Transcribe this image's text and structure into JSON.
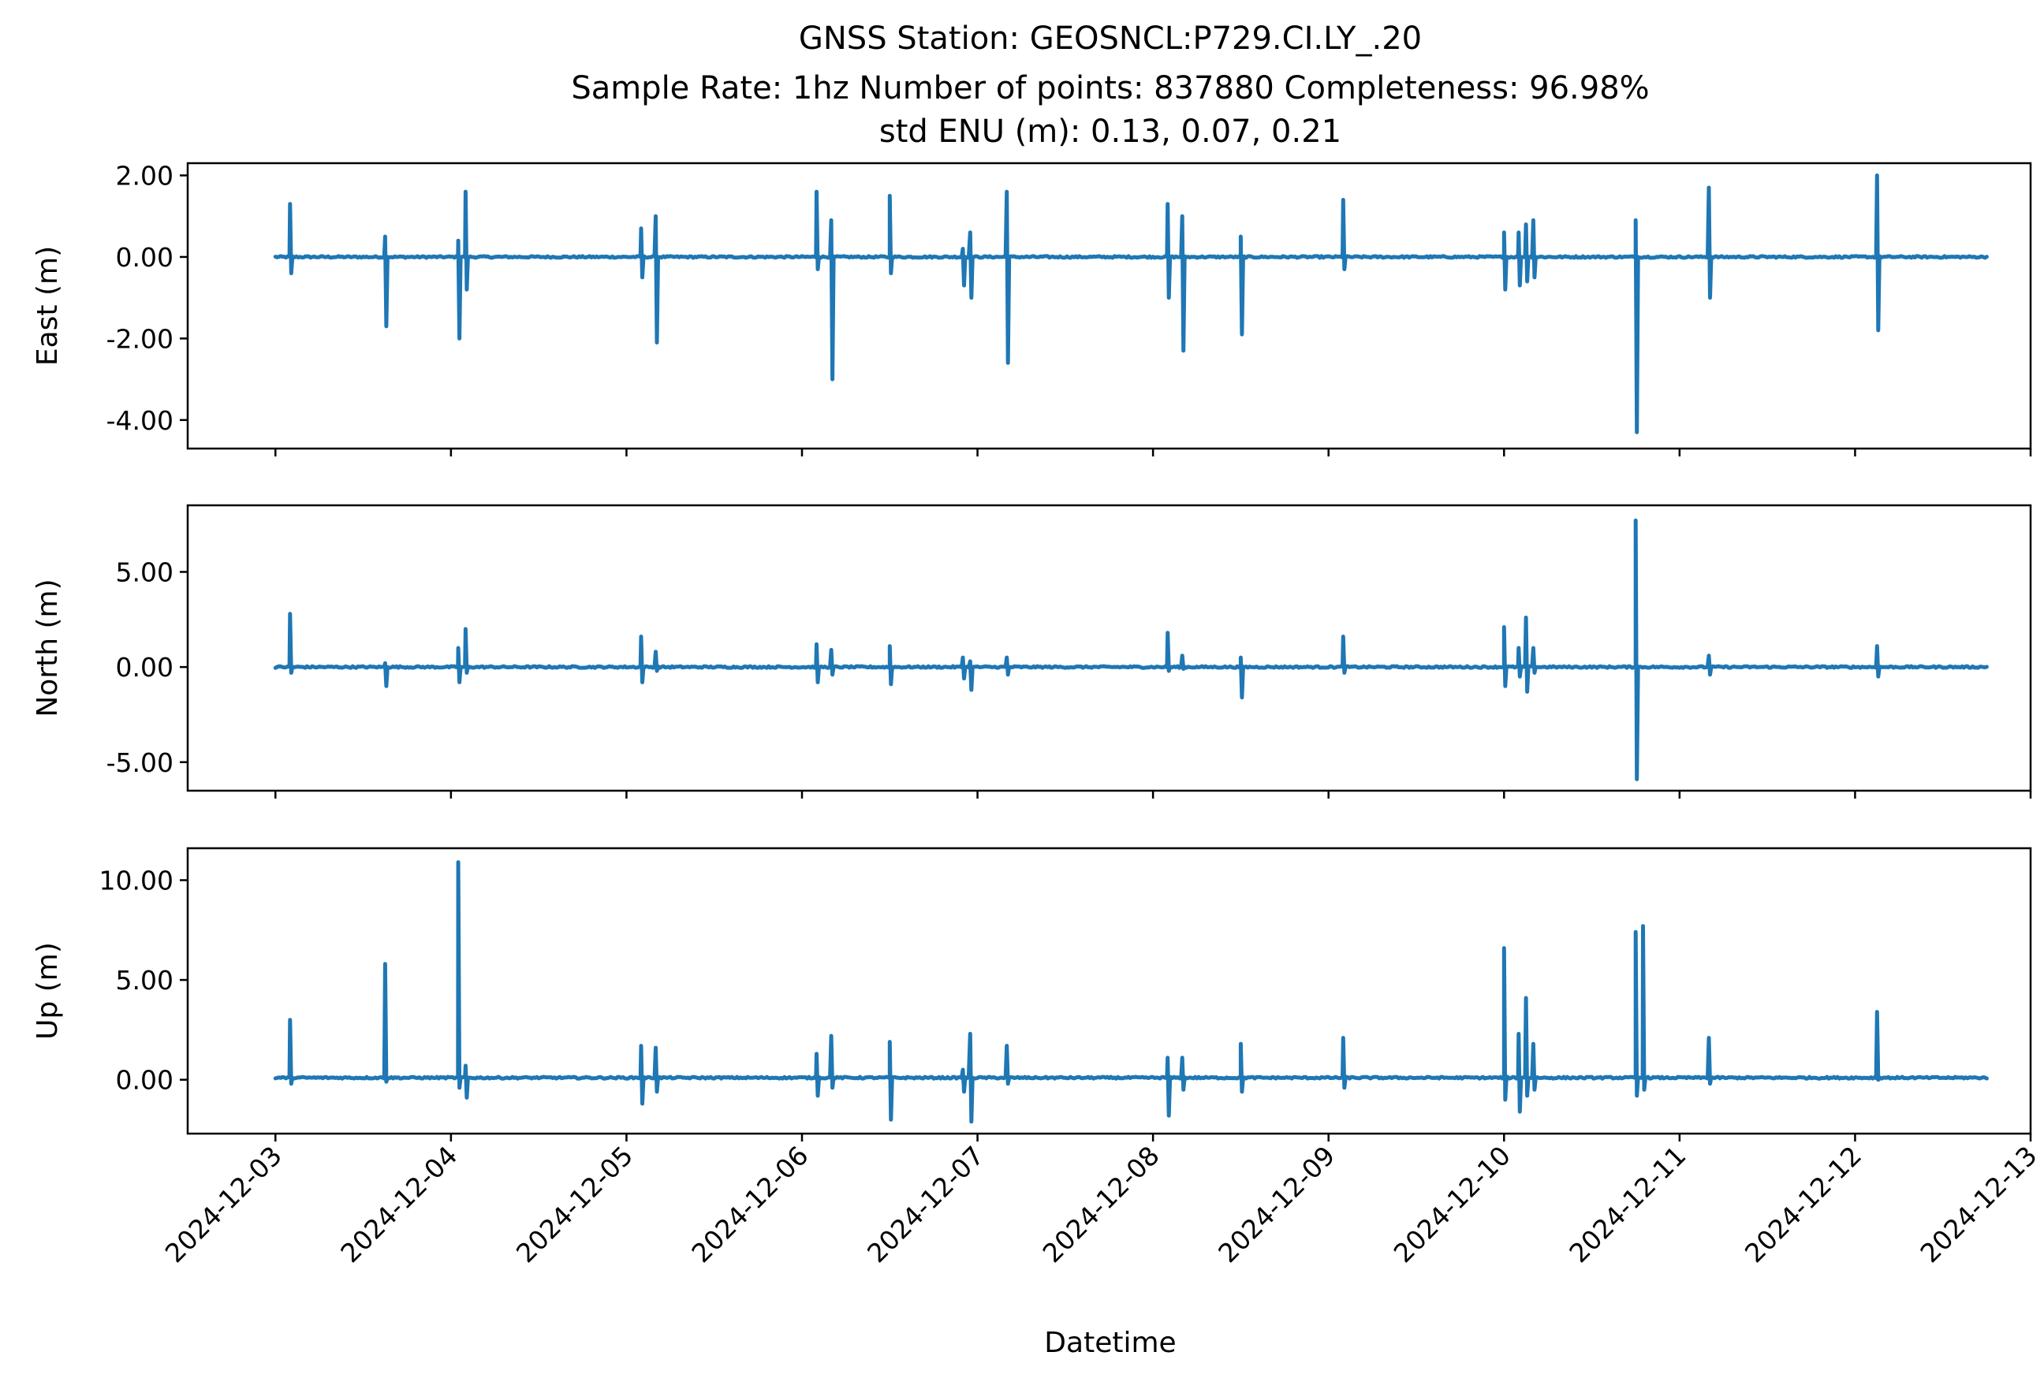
{
  "chart_data": {
    "type": "line",
    "title": "GNSS Station: GEOSNCL:P729.CI.LY_.20",
    "subtitle": "Sample Rate: 1hz   Number of points: 837880    Completeness:  96.98%",
    "subtitle2": "std ENU (m):  0.13, 0.07, 0.21",
    "xlabel": "Datetime",
    "x_ticks": [
      "2024-12-03",
      "2024-12-04",
      "2024-12-05",
      "2024-12-06",
      "2024-12-07",
      "2024-12-08",
      "2024-12-09",
      "2024-12-10",
      "2024-12-11",
      "2024-12-12",
      "2024-12-13"
    ],
    "xlim": [
      "2024-12-02 12:00",
      "2024-12-13 00:00"
    ],
    "grid": false,
    "color": "#1f77b4",
    "panels": [
      {
        "ylabel": "East (m)",
        "ylim": [
          -4.7,
          2.3
        ],
        "yticks": [
          "2.00",
          "0.00",
          "-2.00",
          "-4.00"
        ],
        "ytick_values": [
          2,
          0,
          -2,
          -4
        ],
        "baseline": 0.0,
        "spikes": [
          {
            "t": "2024-12-03 02:00",
            "max": 1.3,
            "min": -0.4
          },
          {
            "t": "2024-12-03 15:00",
            "max": 0.5,
            "min": -1.7
          },
          {
            "t": "2024-12-04 01:00",
            "max": 0.4,
            "min": -2.0
          },
          {
            "t": "2024-12-04 02:00",
            "max": 1.6,
            "min": -0.8
          },
          {
            "t": "2024-12-05 02:00",
            "max": 0.7,
            "min": -0.5
          },
          {
            "t": "2024-12-05 04:00",
            "max": 1.0,
            "min": -2.1
          },
          {
            "t": "2024-12-06 02:00",
            "max": 1.6,
            "min": -0.3
          },
          {
            "t": "2024-12-06 04:00",
            "max": 0.9,
            "min": -3.0
          },
          {
            "t": "2024-12-06 12:00",
            "max": 1.5,
            "min": -0.4
          },
          {
            "t": "2024-12-06 22:00",
            "max": 0.2,
            "min": -0.7
          },
          {
            "t": "2024-12-06 23:00",
            "max": 0.6,
            "min": -1.0
          },
          {
            "t": "2024-12-07 04:00",
            "max": 1.6,
            "min": -2.6
          },
          {
            "t": "2024-12-08 02:00",
            "max": 1.3,
            "min": -1.0
          },
          {
            "t": "2024-12-08 04:00",
            "max": 1.0,
            "min": -2.3
          },
          {
            "t": "2024-12-08 12:00",
            "max": 0.5,
            "min": -1.9
          },
          {
            "t": "2024-12-09 02:00",
            "max": 1.4,
            "min": -0.3
          },
          {
            "t": "2024-12-10 00:00",
            "max": 0.6,
            "min": -0.8
          },
          {
            "t": "2024-12-10 02:00",
            "max": 0.6,
            "min": -0.7
          },
          {
            "t": "2024-12-10 03:00",
            "max": 0.8,
            "min": -0.6
          },
          {
            "t": "2024-12-10 04:00",
            "max": 0.9,
            "min": -0.5
          },
          {
            "t": "2024-12-10 18:00",
            "max": 0.9,
            "min": -4.3
          },
          {
            "t": "2024-12-11 04:00",
            "max": 1.7,
            "min": -1.0
          },
          {
            "t": "2024-12-12 03:00",
            "max": 2.0,
            "min": -1.8
          }
        ]
      },
      {
        "ylabel": "North (m)",
        "ylim": [
          -6.5,
          8.5
        ],
        "yticks": [
          "5.00",
          "0.00",
          "-5.00"
        ],
        "ytick_values": [
          5,
          0,
          -5
        ],
        "baseline": 0.0,
        "spikes": [
          {
            "t": "2024-12-03 02:00",
            "max": 2.8,
            "min": -0.3
          },
          {
            "t": "2024-12-03 15:00",
            "max": 0.2,
            "min": -1.0
          },
          {
            "t": "2024-12-04 01:00",
            "max": 1.0,
            "min": -0.8
          },
          {
            "t": "2024-12-04 02:00",
            "max": 2.0,
            "min": -0.3
          },
          {
            "t": "2024-12-05 02:00",
            "max": 1.6,
            "min": -0.8
          },
          {
            "t": "2024-12-05 04:00",
            "max": 0.8,
            "min": -0.2
          },
          {
            "t": "2024-12-06 02:00",
            "max": 1.2,
            "min": -0.8
          },
          {
            "t": "2024-12-06 04:00",
            "max": 0.9,
            "min": -0.4
          },
          {
            "t": "2024-12-06 12:00",
            "max": 1.1,
            "min": -0.9
          },
          {
            "t": "2024-12-06 22:00",
            "max": 0.5,
            "min": -0.6
          },
          {
            "t": "2024-12-06 23:00",
            "max": 0.3,
            "min": -1.2
          },
          {
            "t": "2024-12-07 04:00",
            "max": 0.5,
            "min": -0.4
          },
          {
            "t": "2024-12-08 02:00",
            "max": 1.8,
            "min": -0.2
          },
          {
            "t": "2024-12-08 04:00",
            "max": 0.6,
            "min": -0.1
          },
          {
            "t": "2024-12-08 12:00",
            "max": 0.5,
            "min": -1.6
          },
          {
            "t": "2024-12-09 02:00",
            "max": 1.6,
            "min": -0.3
          },
          {
            "t": "2024-12-10 00:00",
            "max": 2.1,
            "min": -1.0
          },
          {
            "t": "2024-12-10 02:00",
            "max": 1.0,
            "min": -0.5
          },
          {
            "t": "2024-12-10 03:00",
            "max": 2.6,
            "min": -1.3
          },
          {
            "t": "2024-12-10 04:00",
            "max": 1.0,
            "min": -0.3
          },
          {
            "t": "2024-12-10 18:00",
            "max": 7.7,
            "min": -5.9
          },
          {
            "t": "2024-12-11 04:00",
            "max": 0.6,
            "min": -0.4
          },
          {
            "t": "2024-12-12 03:00",
            "max": 1.1,
            "min": -0.5
          }
        ]
      },
      {
        "ylabel": "Up (m)",
        "ylim": [
          -2.7,
          11.6
        ],
        "yticks": [
          "10.00",
          "5.00",
          "0.00"
        ],
        "ytick_values": [
          10,
          5,
          0
        ],
        "baseline": 0.1,
        "spikes": [
          {
            "t": "2024-12-03 02:00",
            "max": 3.0,
            "min": -0.2
          },
          {
            "t": "2024-12-03 15:00",
            "max": 5.8,
            "min": -0.1
          },
          {
            "t": "2024-12-04 01:00",
            "max": 10.9,
            "min": -0.4
          },
          {
            "t": "2024-12-04 02:00",
            "max": 0.7,
            "min": -0.9
          },
          {
            "t": "2024-12-05 02:00",
            "max": 1.7,
            "min": -1.2
          },
          {
            "t": "2024-12-05 04:00",
            "max": 1.6,
            "min": -0.6
          },
          {
            "t": "2024-12-06 02:00",
            "max": 1.3,
            "min": -0.8
          },
          {
            "t": "2024-12-06 04:00",
            "max": 2.2,
            "min": -0.4
          },
          {
            "t": "2024-12-06 12:00",
            "max": 1.9,
            "min": -2.0
          },
          {
            "t": "2024-12-06 22:00",
            "max": 0.5,
            "min": -0.6
          },
          {
            "t": "2024-12-06 23:00",
            "max": 2.3,
            "min": -2.1
          },
          {
            "t": "2024-12-07 04:00",
            "max": 1.7,
            "min": -0.2
          },
          {
            "t": "2024-12-08 02:00",
            "max": 1.1,
            "min": -1.8
          },
          {
            "t": "2024-12-08 04:00",
            "max": 1.1,
            "min": -0.5
          },
          {
            "t": "2024-12-08 12:00",
            "max": 1.8,
            "min": -0.6
          },
          {
            "t": "2024-12-09 02:00",
            "max": 2.1,
            "min": -0.4
          },
          {
            "t": "2024-12-10 00:00",
            "max": 6.6,
            "min": -1.0
          },
          {
            "t": "2024-12-10 02:00",
            "max": 2.3,
            "min": -1.6
          },
          {
            "t": "2024-12-10 03:00",
            "max": 4.1,
            "min": -0.8
          },
          {
            "t": "2024-12-10 04:00",
            "max": 1.8,
            "min": -0.5
          },
          {
            "t": "2024-12-10 18:00",
            "max": 7.4,
            "min": -0.8
          },
          {
            "t": "2024-12-10 19:00",
            "max": 7.7,
            "min": -0.5
          },
          {
            "t": "2024-12-11 04:00",
            "max": 2.1,
            "min": -0.2
          },
          {
            "t": "2024-12-12 03:00",
            "max": 3.4,
            "min": 0.0
          }
        ]
      }
    ]
  }
}
